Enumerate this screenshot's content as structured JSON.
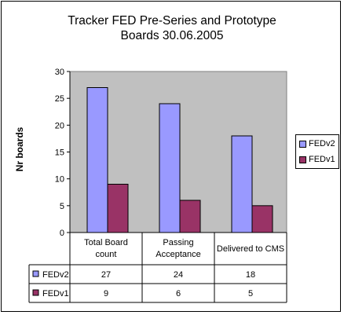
{
  "chart_data": {
    "type": "bar",
    "title": "Tracker FED Pre-Series and Prototype Boards 30.06.2005",
    "title_lines": [
      "Tracker FED Pre-Series and Prototype",
      "Boards 30.06.2005"
    ],
    "ylabel": "Nr boards",
    "xlabel": "",
    "ylim": [
      0,
      30
    ],
    "yticks": [
      0,
      5,
      10,
      15,
      20,
      25,
      30
    ],
    "categories": [
      "Total Board count",
      "Passing Acceptance",
      "Delivered to CMS"
    ],
    "category_lines": [
      [
        "Total Board",
        "count"
      ],
      [
        "Passing",
        "Acceptance"
      ],
      [
        "Delivered to CMS"
      ]
    ],
    "series": [
      {
        "name": "FEDv2",
        "values": [
          27,
          24,
          18
        ],
        "color": "#9999ff"
      },
      {
        "name": "FEDv1",
        "values": [
          9,
          6,
          5
        ],
        "color": "#993366"
      }
    ],
    "grid": false,
    "legend_position": "right",
    "data_table": true,
    "plot_background": "#c0c0c0"
  }
}
